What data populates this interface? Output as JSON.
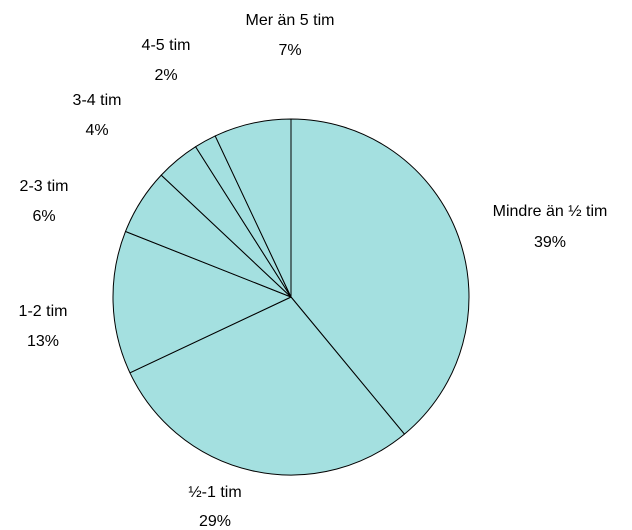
{
  "chart_data": {
    "type": "pie",
    "title": "",
    "slice_color": "#a4e0e0",
    "stroke_color": "#000000",
    "slices": [
      {
        "category": "Mindre än ½  tim",
        "value": 39,
        "value_label": "39%"
      },
      {
        "category": "½-1 tim",
        "value": 29,
        "value_label": "29%"
      },
      {
        "category": "1-2 tim",
        "value": 13,
        "value_label": "13%"
      },
      {
        "category": "2-3 tim",
        "value": 6,
        "value_label": "6%"
      },
      {
        "category": "3-4 tim",
        "value": 4,
        "value_label": "4%"
      },
      {
        "category": "4-5 tim",
        "value": 2,
        "value_label": "2%"
      },
      {
        "category": "Mer än 5 tim",
        "value": 7,
        "value_label": "7%"
      }
    ]
  }
}
